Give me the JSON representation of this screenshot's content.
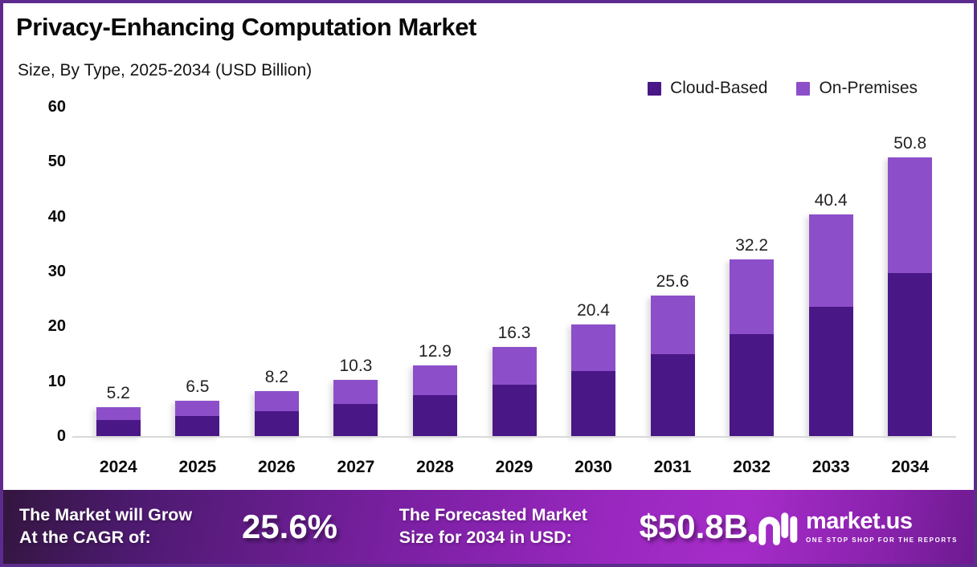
{
  "header": {
    "title": "Privacy-Enhancing Computation Market",
    "subtitle": "Size, By Type, 2025-2034 (USD Billion)"
  },
  "legend": [
    {
      "label": "Cloud-Based",
      "color": "#4a1787"
    },
    {
      "label": "On-Premises",
      "color": "#8c4fc9"
    }
  ],
  "chart_data": {
    "type": "bar",
    "stacked": true,
    "title": "Privacy-Enhancing Computation Market Size, By Type, 2025-2034 (USD Billion)",
    "categories": [
      "2024",
      "2025",
      "2026",
      "2027",
      "2028",
      "2029",
      "2030",
      "2031",
      "2032",
      "2033",
      "2034"
    ],
    "series": [
      {
        "name": "Cloud-Based",
        "color": "#4a1787",
        "values": [
          2.9,
          3.7,
          4.6,
          5.8,
          7.4,
          9.4,
          11.9,
          15.0,
          18.6,
          23.5,
          29.7
        ]
      },
      {
        "name": "On-Premises",
        "color": "#8c4fc9",
        "values": [
          2.3,
          2.8,
          3.6,
          4.5,
          5.5,
          6.9,
          8.5,
          10.6,
          13.6,
          16.9,
          21.1
        ]
      }
    ],
    "totals": [
      5.2,
      6.5,
      8.2,
      10.3,
      12.9,
      16.3,
      20.4,
      25.6,
      32.2,
      40.4,
      50.8
    ],
    "total_labels": [
      "5.2",
      "6.5",
      "8.2",
      "10.3",
      "12.9",
      "16.3",
      "20.4",
      "25.6",
      "32.2",
      "40.4",
      "50.8"
    ],
    "xlabel": "",
    "ylabel": "",
    "ylim": [
      0,
      60
    ],
    "yticks": [
      0,
      10,
      20,
      30,
      40,
      50,
      60
    ],
    "grid": false,
    "legend_position": "top-right"
  },
  "banner": {
    "cagr_label_line1": "The Market will Grow",
    "cagr_label_line2": "At the CAGR of:",
    "cagr_value": "25.6%",
    "forecast_label_line1": "The Forecasted Market",
    "forecast_label_line2": "Size for 2034 in USD:",
    "forecast_value": "$50.8B",
    "logo_name": "market.us",
    "logo_tagline": "ONE STOP SHOP FOR THE REPORTS"
  },
  "colors": {
    "border": "#5d2b8d",
    "baseline": "#d9d9d9",
    "cloud_based": "#4a1787",
    "on_premises": "#8c4fc9",
    "banner_gradient_start": "#33163f",
    "banner_gradient_mid": "#9a28c0",
    "banner_gradient_end": "#6d1a90"
  }
}
